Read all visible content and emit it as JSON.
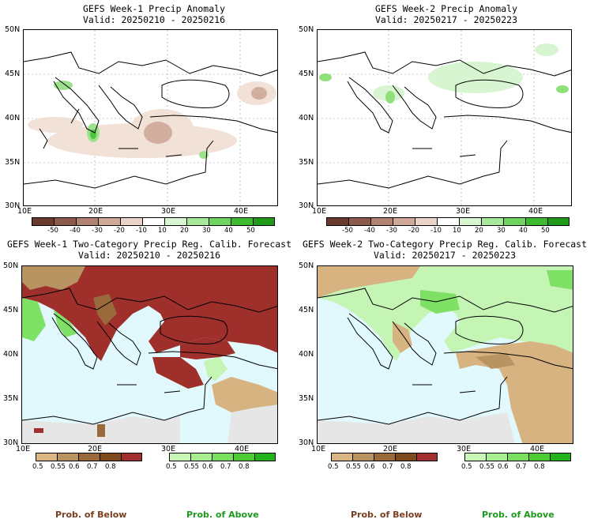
{
  "panels": [
    {
      "title": "GEFS Week-1 Precip Anomaly",
      "valid": "Valid: 20250210 - 20250216"
    },
    {
      "title": "GEFS Week-2 Precip Anomaly",
      "valid": "Valid: 20250217 - 20250223"
    },
    {
      "title": "GEFS Week-1 Two-Category Precip Reg. Calib. Forecast",
      "valid": "Valid: 20250210 - 20250216"
    },
    {
      "title": "GEFS Week-2 Two-Category Precip Reg. Calib. Forecast",
      "valid": "Valid: 20250217 - 20250223"
    }
  ],
  "lat_labels": [
    "50N",
    "45N",
    "40N",
    "35N",
    "30N"
  ],
  "lon_labels": [
    "10E",
    "20E",
    "30E",
    "40E"
  ],
  "anomaly_ticks": [
    "-50",
    "-40",
    "-30",
    "-20",
    "-10",
    "10",
    "20",
    "30",
    "40",
    "50"
  ],
  "anomaly_colors": [
    "#6b3a2e",
    "#8c5a4a",
    "#b0826f",
    "#cfa898",
    "#ead4c9",
    "#ffffff",
    "#d6f5d0",
    "#a8e89a",
    "#6fd35f",
    "#3dbb2e",
    "#1f9a18"
  ],
  "below_ticks": [
    "0.5",
    "0.55",
    "0.6",
    "0.7",
    "0.8"
  ],
  "below_colors": [
    "#d9b683",
    "#b89463",
    "#9a6a3c",
    "#7e4a1e",
    "#a03030"
  ],
  "above_ticks": [
    "0.5",
    "0.55",
    "0.6",
    "0.7",
    "0.8"
  ],
  "above_colors": [
    "#c9f7b8",
    "#a8ee92",
    "#79df5e",
    "#4dcc36",
    "#22b21c"
  ],
  "footer": {
    "below": "Prob. of Below",
    "above": "Prob. of Above"
  },
  "colors": {
    "sea": "#e1f9fd",
    "dry_land": "#e6e6e6",
    "below_main": "#9e2f2a",
    "below_tan": "#d8b382",
    "above_light": "#c4f5b4",
    "above_mid": "#7fe066"
  }
}
